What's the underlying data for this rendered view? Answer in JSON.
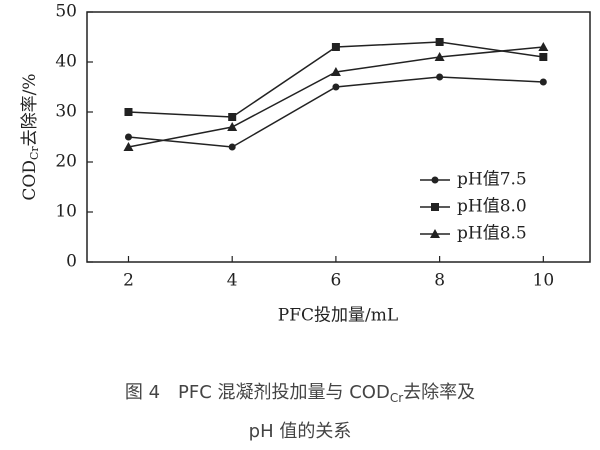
{
  "chart_data": {
    "type": "line",
    "x": [
      2,
      4,
      6,
      8,
      10
    ],
    "xlim": [
      1.2,
      10.9
    ],
    "xticks": [
      2,
      4,
      6,
      8,
      10
    ],
    "ylim": [
      0,
      50
    ],
    "yticks": [
      0,
      10,
      20,
      30,
      40,
      50
    ],
    "xlabel": "PFC投加量/mL",
    "ylabel": {
      "main": "COD",
      "sub": "Cr",
      "rest": "去除率/%"
    },
    "legend": "lower right",
    "series": [
      {
        "name": "pH值7.5",
        "color": "#222222",
        "marker": "circle",
        "values": [
          25,
          23,
          35,
          37,
          36
        ]
      },
      {
        "name": "pH值8.0",
        "color": "#222222",
        "marker": "square",
        "values": [
          30,
          29,
          43,
          44,
          41
        ]
      },
      {
        "name": "pH值8.5",
        "color": "#222222",
        "marker": "triangle",
        "values": [
          23,
          27,
          38,
          41,
          43
        ]
      }
    ],
    "caption": {
      "line1": "图 4　PFC 混凝剂投加量与 COD",
      "sub": "Cr",
      "line1_end": "去除率及",
      "line2": "pH 值的关系"
    }
  }
}
